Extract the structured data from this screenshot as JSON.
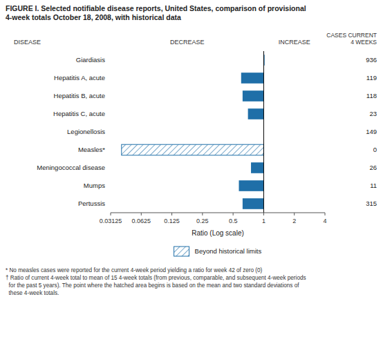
{
  "chart_data": {
    "type": "bar",
    "orientation": "horizontal",
    "log": "x",
    "grid": false,
    "title": "FIGURE I. Selected notifiable disease reports, United States, comparison of provisional\n4-week totals October 18, 2008, with historical data",
    "categories": [
      "Giardiasis",
      "Hepatitis A, acute",
      "Hepatitis B, acute",
      "Hepatitis C, acute",
      "Legionellosis",
      "Measles*",
      "Meningococcal disease",
      "Mumps",
      "Pertussis"
    ],
    "values": [
      1.02,
      0.6,
      0.62,
      0.7,
      1.0,
      0.04,
      0.75,
      0.57,
      0.62
    ],
    "cases": [
      936,
      119,
      118,
      23,
      149,
      0,
      26,
      11,
      315
    ],
    "color": "#1F6FA8",
    "hatched": [
      "Measles*"
    ],
    "hatched_label": "Beyond historical limits",
    "xlim": [
      0.03125,
      4
    ],
    "xticks": [
      0.03125,
      0.0625,
      0.125,
      0.25,
      0.5,
      1,
      2,
      4
    ],
    "xlabel": "Ratio (Log scale)",
    "vline": 1.0,
    "column_headers": {
      "disease": "DISEASE",
      "decrease": "DECREASE",
      "increase": "INCREASE",
      "cases": "CASES CURRENT\n4 WEEKS"
    },
    "footnote": "* No measles cases were reported for the current 4-week period yielding a ratio for week 42 of zero (0)\n† Ratio of current 4-week total to mean of 15 4-week totals (from previous, comparable, and subsequent 4-week periods\n  for the past 5 years). The point where the hatched area begins is based on the mean and two standard deviations of\n  these 4-week totals."
  }
}
